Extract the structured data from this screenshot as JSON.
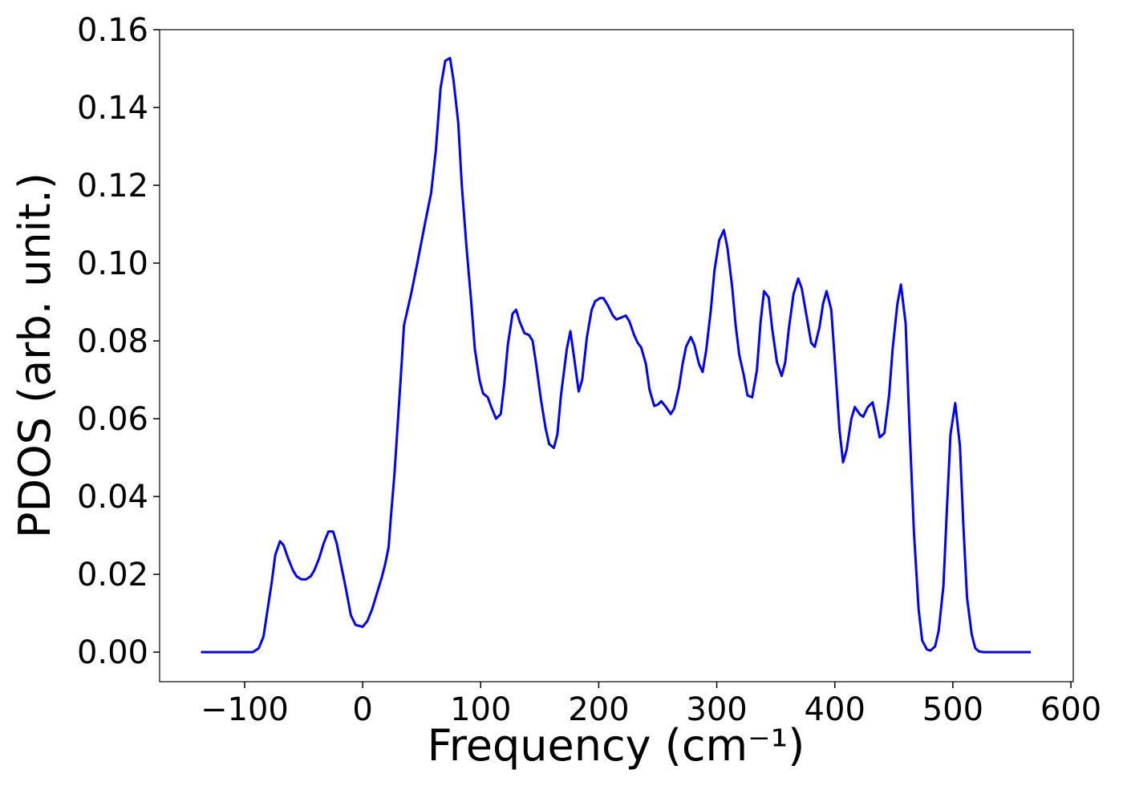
{
  "chart_data": {
    "type": "line",
    "xlabel": "Frequency (cm⁻¹)",
    "ylabel": "PDOS (arb. unit.)",
    "color": "#0000ff",
    "x": [
      -137,
      -93,
      -88,
      -84,
      -81,
      -77,
      -74,
      -70,
      -67,
      -63,
      -59,
      -56,
      -52,
      -48,
      -44,
      -41,
      -37,
      -33,
      -29,
      -25,
      -22,
      -18,
      -14,
      -10,
      -6,
      0,
      4,
      8,
      12,
      16,
      19,
      22,
      24,
      27,
      30,
      33,
      35,
      41,
      46,
      53,
      58,
      62,
      66,
      70,
      74,
      77,
      81,
      84,
      88,
      92,
      95,
      99,
      102,
      106,
      109,
      113,
      117,
      120,
      123,
      127,
      130,
      133,
      137,
      141,
      144,
      147,
      151,
      155,
      158,
      162,
      165,
      168,
      173,
      176,
      179,
      183,
      186,
      190,
      194,
      197,
      201,
      204,
      208,
      212,
      215,
      219,
      223,
      226,
      230,
      233,
      236,
      240,
      243,
      247,
      250,
      253,
      257,
      261,
      264,
      268,
      271,
      274,
      278,
      281,
      285,
      288,
      291,
      295,
      298,
      302,
      306,
      309,
      313,
      316,
      319,
      323,
      326,
      330,
      334,
      337,
      340,
      344,
      347,
      351,
      355,
      358,
      361,
      365,
      369,
      372,
      376,
      380,
      383,
      387,
      390,
      393,
      397,
      400,
      404,
      407,
      410,
      414,
      417,
      421,
      424,
      428,
      432,
      435,
      438,
      442,
      446,
      449,
      453,
      456,
      460,
      463,
      467,
      471,
      474,
      478,
      481,
      485,
      488,
      492,
      495,
      498,
      502,
      506,
      509,
      512,
      516,
      519,
      522,
      526,
      566
    ],
    "values": [
      0,
      0,
      0.001,
      0.004,
      0.01,
      0.018,
      0.025,
      0.0285,
      0.0275,
      0.024,
      0.021,
      0.0195,
      0.0187,
      0.0187,
      0.0195,
      0.021,
      0.024,
      0.028,
      0.031,
      0.031,
      0.028,
      0.022,
      0.016,
      0.0095,
      0.007,
      0.0065,
      0.008,
      0.011,
      0.015,
      0.019,
      0.0225,
      0.027,
      0.035,
      0.046,
      0.06,
      0.074,
      0.084,
      0.092,
      0.0995,
      0.1105,
      0.118,
      0.129,
      0.145,
      0.152,
      0.1527,
      0.147,
      0.136,
      0.12,
      0.104,
      0.09,
      0.078,
      0.07,
      0.0665,
      0.0655,
      0.063,
      0.06,
      0.0612,
      0.069,
      0.079,
      0.087,
      0.088,
      0.085,
      0.082,
      0.0815,
      0.08,
      0.074,
      0.065,
      0.0575,
      0.0535,
      0.0525,
      0.056,
      0.066,
      0.078,
      0.0825,
      0.076,
      0.067,
      0.07,
      0.081,
      0.088,
      0.0902,
      0.091,
      0.091,
      0.089,
      0.0865,
      0.0855,
      0.086,
      0.0865,
      0.085,
      0.0815,
      0.0795,
      0.0783,
      0.074,
      0.0675,
      0.0633,
      0.0636,
      0.0645,
      0.063,
      0.0612,
      0.0627,
      0.068,
      0.074,
      0.0785,
      0.081,
      0.079,
      0.074,
      0.072,
      0.0775,
      0.088,
      0.098,
      0.1058,
      0.1085,
      0.104,
      0.094,
      0.084,
      0.0765,
      0.071,
      0.066,
      0.0655,
      0.0725,
      0.0845,
      0.0928,
      0.0912,
      0.083,
      0.0745,
      0.071,
      0.0745,
      0.083,
      0.092,
      0.096,
      0.0935,
      0.0865,
      0.0795,
      0.0785,
      0.0835,
      0.0895,
      0.0928,
      0.088,
      0.075,
      0.057,
      0.0488,
      0.052,
      0.06,
      0.063,
      0.0612,
      0.0605,
      0.063,
      0.0642,
      0.06,
      0.0552,
      0.0563,
      0.066,
      0.078,
      0.0895,
      0.0945,
      0.0845,
      0.06,
      0.031,
      0.011,
      0.003,
      0.0007,
      0.0004,
      0.0015,
      0.0055,
      0.017,
      0.037,
      0.056,
      0.064,
      0.053,
      0.032,
      0.014,
      0.0045,
      0.001,
      0.0002,
      0,
      0
    ],
    "xlim": [
      -172,
      602
    ],
    "ylim": [
      -0.0076,
      0.16
    ],
    "xticks": [
      {
        "value": -100,
        "label": "−100"
      },
      0,
      100,
      200,
      300,
      400,
      500,
      600
    ],
    "yticks": [
      {
        "value": 0,
        "label": "0.00"
      },
      0.02,
      0.04,
      0.06,
      0.08,
      {
        "value": 0.1,
        "label": "0.10"
      },
      0.12,
      0.14,
      0.16
    ]
  }
}
